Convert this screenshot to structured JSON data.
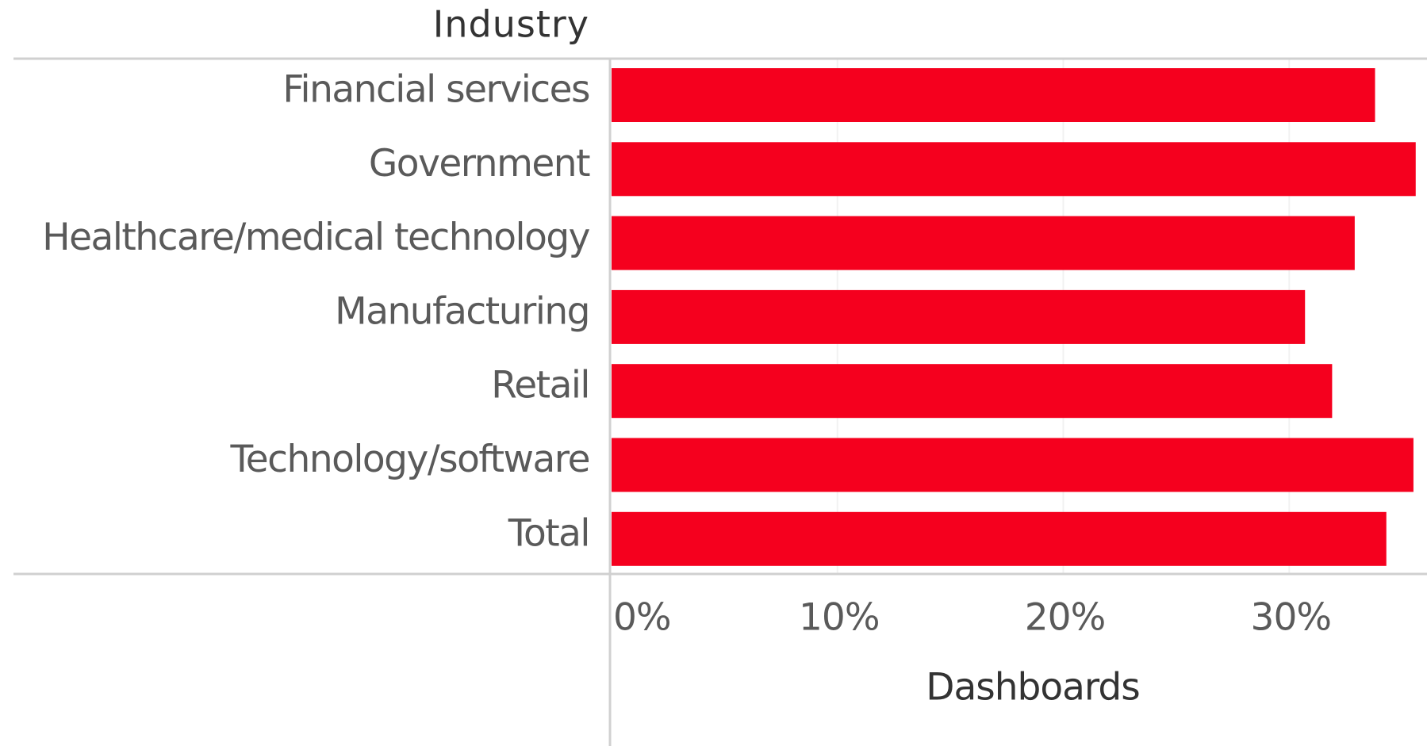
{
  "chart_data": {
    "type": "bar",
    "orientation": "horizontal",
    "y_label": "Industry",
    "x_label": "Dashboards",
    "categories": [
      "Financial services",
      "Government",
      "Healthcare/medical technology",
      "Manufacturing",
      "Retail",
      "Technology/software",
      "Total"
    ],
    "values": [
      33.8,
      35.6,
      32.9,
      30.7,
      31.9,
      35.5,
      34.3
    ],
    "color": "#f5001e",
    "xlim": [
      0,
      36.1
    ],
    "xticks": [
      {
        "value": 0,
        "label": "0%"
      },
      {
        "value": 10,
        "label": "10%"
      },
      {
        "value": 20,
        "label": "20%"
      },
      {
        "value": 30,
        "label": "30%"
      }
    ],
    "grid": true
  }
}
